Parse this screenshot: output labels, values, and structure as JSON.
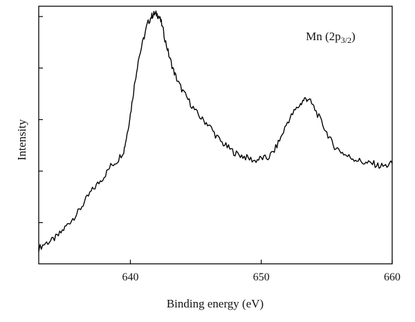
{
  "chart_data": {
    "type": "line",
    "title": "",
    "annotation": {
      "main": "Mn (2p",
      "sub": "3/2",
      "close": ")"
    },
    "xlabel": "Binding energy (eV)",
    "ylabel": "Intensity",
    "xlim": [
      633,
      660
    ],
    "ylim": [
      0,
      1
    ],
    "x_ticks": [
      640,
      650,
      660
    ],
    "x_tick_labels": [
      "640",
      "650",
      "660"
    ],
    "y_tick_labels_shown": false,
    "grid": false,
    "line_color": "#000000",
    "series": [
      {
        "x": [
          633.0,
          633.5,
          634.0,
          634.5,
          635.0,
          635.5,
          636.0,
          636.5,
          637.0,
          637.5,
          638.0,
          638.5,
          639.0,
          639.5,
          639.7,
          640.0,
          640.3,
          640.6,
          641.0,
          641.3,
          641.6,
          641.8,
          642.0,
          642.2,
          642.4,
          642.7,
          643.0,
          643.3,
          643.6,
          644.0,
          644.5,
          645.0,
          645.5,
          646.0,
          646.5,
          647.0,
          647.5,
          648.0,
          648.5,
          649.0,
          649.5,
          650.0,
          650.5,
          651.0,
          651.5,
          652.0,
          652.5,
          653.0,
          653.3,
          653.6,
          654.0,
          654.5,
          655.0,
          655.5,
          656.0,
          656.5,
          657.0,
          657.5,
          658.0,
          658.5,
          659.0,
          659.5,
          660.0
        ],
        "y": [
          0.06,
          0.08,
          0.09,
          0.11,
          0.14,
          0.17,
          0.2,
          0.24,
          0.28,
          0.31,
          0.34,
          0.38,
          0.4,
          0.44,
          0.49,
          0.58,
          0.69,
          0.79,
          0.87,
          0.93,
          0.96,
          0.97,
          0.97,
          0.96,
          0.93,
          0.86,
          0.8,
          0.75,
          0.71,
          0.67,
          0.63,
          0.59,
          0.56,
          0.54,
          0.5,
          0.47,
          0.45,
          0.43,
          0.42,
          0.41,
          0.4,
          0.41,
          0.41,
          0.44,
          0.49,
          0.55,
          0.59,
          0.62,
          0.64,
          0.64,
          0.61,
          0.56,
          0.51,
          0.46,
          0.44,
          0.42,
          0.41,
          0.4,
          0.39,
          0.39,
          0.38,
          0.38,
          0.39
        ]
      }
    ]
  }
}
